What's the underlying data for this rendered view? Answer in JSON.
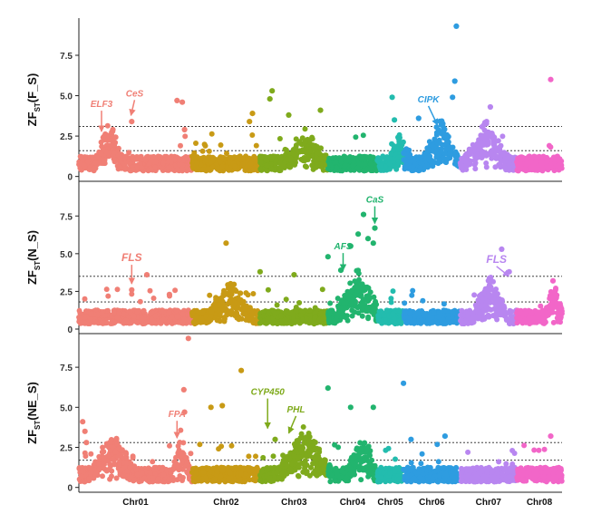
{
  "chart_data": {
    "type": "scatter",
    "subtype": "manhattan",
    "chromosomes": [
      {
        "name": "Chr01",
        "color": "#F07F75",
        "start": 0,
        "end": 15
      },
      {
        "name": "Chr02",
        "color": "#C89A15",
        "start": 15,
        "end": 24
      },
      {
        "name": "Chr03",
        "color": "#7FAA1C",
        "start": 24,
        "end": 33
      },
      {
        "name": "Chr04",
        "color": "#22B46E",
        "start": 33,
        "end": 39.5
      },
      {
        "name": "Chr05",
        "color": "#23BCAE",
        "start": 39.5,
        "end": 43
      },
      {
        "name": "Chr06",
        "color": "#2E9CE0",
        "start": 43,
        "end": 50.5
      },
      {
        "name": "Chr07",
        "color": "#B886F0",
        "start": 50.5,
        "end": 58
      },
      {
        "name": "Chr08",
        "color": "#F266C8",
        "start": 58,
        "end": 64
      }
    ],
    "x_range": [
      0,
      64
    ],
    "panels": [
      {
        "ylabel_main": "ZF",
        "ylabel_sub": "ST",
        "ylabel_suffix": "(F_S)",
        "ylim": [
          -0.3,
          9.8
        ],
        "yticks": [
          "0",
          "2.5",
          "5.0",
          "7.5"
        ],
        "thresholds": [
          1.6,
          3.1
        ],
        "peaks": [
          {
            "x": 4.0,
            "y": 2.3,
            "spread": 2.0
          },
          {
            "x": 30,
            "y": 1.8,
            "spread": 3.0
          },
          {
            "x": 42.5,
            "y": 1.5,
            "spread": 1.5
          },
          {
            "x": 48,
            "y": 2.6,
            "spread": 2.5
          },
          {
            "x": 54,
            "y": 2.4,
            "spread": 3.0
          }
        ],
        "outliers": [
          {
            "x": 7.0,
            "y": 3.4
          },
          {
            "x": 4.5,
            "y": 2.9
          },
          {
            "x": 13.0,
            "y": 4.7
          },
          {
            "x": 13.7,
            "y": 4.6
          },
          {
            "x": 14.0,
            "y": 2.9
          },
          {
            "x": 22.6,
            "y": 3.4
          },
          {
            "x": 23.0,
            "y": 3.9
          },
          {
            "x": 25.6,
            "y": 5.3
          },
          {
            "x": 25.3,
            "y": 4.8
          },
          {
            "x": 27.8,
            "y": 3.8
          },
          {
            "x": 32.0,
            "y": 4.1
          },
          {
            "x": 41.5,
            "y": 4.9
          },
          {
            "x": 41.8,
            "y": 3.5
          },
          {
            "x": 50.0,
            "y": 9.3
          },
          {
            "x": 49.8,
            "y": 5.9
          },
          {
            "x": 49.5,
            "y": 4.9
          },
          {
            "x": 54.5,
            "y": 4.3
          },
          {
            "x": 62.5,
            "y": 6.0
          },
          {
            "x": 45,
            "y": 3.6
          }
        ],
        "annotations": [
          {
            "label": "ELF3",
            "x": 3.0,
            "y": 2.5,
            "color": "#F07F75",
            "size": 10,
            "text_dx": 0,
            "text_dy": -32
          },
          {
            "label": "CeS",
            "x": 6.9,
            "y": 3.5,
            "color": "#F07F75",
            "size": 10,
            "text_dx": 4,
            "text_dy": -26
          },
          {
            "label": "CIPK",
            "x": 47.5,
            "y": 2.9,
            "color": "#2E9CE0",
            "size": 10,
            "text_dx": -10,
            "text_dy": -30
          }
        ]
      },
      {
        "ylabel_main": "ZF",
        "ylabel_sub": "ST",
        "ylabel_suffix": "(N_S)",
        "ylim": [
          -0.3,
          9.8
        ],
        "yticks": [
          "0",
          "2.5",
          "5.0",
          "7.5"
        ],
        "thresholds": [
          1.8,
          3.5
        ],
        "peaks": [
          {
            "x": 20,
            "y": 2.4,
            "spread": 3.0
          },
          {
            "x": 37,
            "y": 3.0,
            "spread": 3.0
          },
          {
            "x": 54.5,
            "y": 2.6,
            "spread": 2.5
          },
          {
            "x": 63,
            "y": 2.4,
            "spread": 1.2
          }
        ],
        "outliers": [
          {
            "x": 9.0,
            "y": 3.6
          },
          {
            "x": 7.0,
            "y": 2.6
          },
          {
            "x": 12.0,
            "y": 2.3
          },
          {
            "x": 19.5,
            "y": 5.7
          },
          {
            "x": 24.0,
            "y": 3.8
          },
          {
            "x": 28.5,
            "y": 3.6
          },
          {
            "x": 33.0,
            "y": 4.8
          },
          {
            "x": 34.7,
            "y": 3.9
          },
          {
            "x": 36.0,
            "y": 5.5
          },
          {
            "x": 37.0,
            "y": 6.3
          },
          {
            "x": 37.7,
            "y": 7.6
          },
          {
            "x": 38.3,
            "y": 6.0
          },
          {
            "x": 39.0,
            "y": 5.7
          },
          {
            "x": 39.2,
            "y": 6.7
          },
          {
            "x": 56.0,
            "y": 5.3
          },
          {
            "x": 57.0,
            "y": 3.8
          },
          {
            "x": 62.8,
            "y": 3.2
          }
        ],
        "annotations": [
          {
            "label": "FLS",
            "x": 7.0,
            "y": 2.7,
            "color": "#F07F75",
            "size": 12,
            "text_dx": 0,
            "text_dy": -30
          },
          {
            "label": "AFS",
            "x": 35.0,
            "y": 3.6,
            "color": "#22B46E",
            "size": 10,
            "text_dx": 0,
            "text_dy": -28
          },
          {
            "label": "CaS",
            "x": 39.2,
            "y": 6.7,
            "color": "#22B46E",
            "size": 10,
            "text_dx": 0,
            "text_dy": -28
          },
          {
            "label": "FLS",
            "x": 57.0,
            "y": 3.2,
            "color": "#B886F0",
            "size": 12,
            "text_dx": -14,
            "text_dy": -20
          }
        ]
      },
      {
        "ylabel_main": "ZF",
        "ylabel_sub": "ST",
        "ylabel_suffix": "(NE_S)",
        "ylim": [
          -0.3,
          9.6
        ],
        "yticks": [
          "0",
          "2.5",
          "5.0",
          "7.5"
        ],
        "thresholds": [
          1.7,
          2.8
        ],
        "peaks": [
          {
            "x": 4.5,
            "y": 2.4,
            "spread": 3.0
          },
          {
            "x": 13.5,
            "y": 2.5,
            "spread": 1.2
          },
          {
            "x": 30,
            "y": 2.8,
            "spread": 3.5
          },
          {
            "x": 37.5,
            "y": 2.3,
            "spread": 2.0
          }
        ],
        "outliers": [
          {
            "x": 0.5,
            "y": 4.1
          },
          {
            "x": 0.8,
            "y": 3.5
          },
          {
            "x": 1.0,
            "y": 2.8
          },
          {
            "x": 14.5,
            "y": 9.3
          },
          {
            "x": 13.9,
            "y": 6.1
          },
          {
            "x": 14.0,
            "y": 4.7
          },
          {
            "x": 17.5,
            "y": 5.0
          },
          {
            "x": 19.0,
            "y": 5.1
          },
          {
            "x": 21.5,
            "y": 7.3
          },
          {
            "x": 26.0,
            "y": 3.0
          },
          {
            "x": 33.0,
            "y": 6.2
          },
          {
            "x": 36.0,
            "y": 5.0
          },
          {
            "x": 39.0,
            "y": 5.0
          },
          {
            "x": 43.0,
            "y": 6.5
          },
          {
            "x": 44.0,
            "y": 3.0
          },
          {
            "x": 48.5,
            "y": 3.2
          },
          {
            "x": 62.5,
            "y": 3.2
          }
        ],
        "annotations": [
          {
            "label": "FPA",
            "x": 13.0,
            "y": 2.8,
            "color": "#F07F75",
            "size": 10,
            "text_dx": 0,
            "text_dy": -28
          },
          {
            "label": "CYP450",
            "x": 25.0,
            "y": 3.4,
            "color": "#7FAA1C",
            "size": 10,
            "text_dx": 0,
            "text_dy": -42
          },
          {
            "label": "PHL",
            "x": 27.8,
            "y": 3.1,
            "color": "#7FAA1C",
            "size": 10,
            "text_dx": 8,
            "text_dy": -28
          }
        ]
      }
    ]
  }
}
